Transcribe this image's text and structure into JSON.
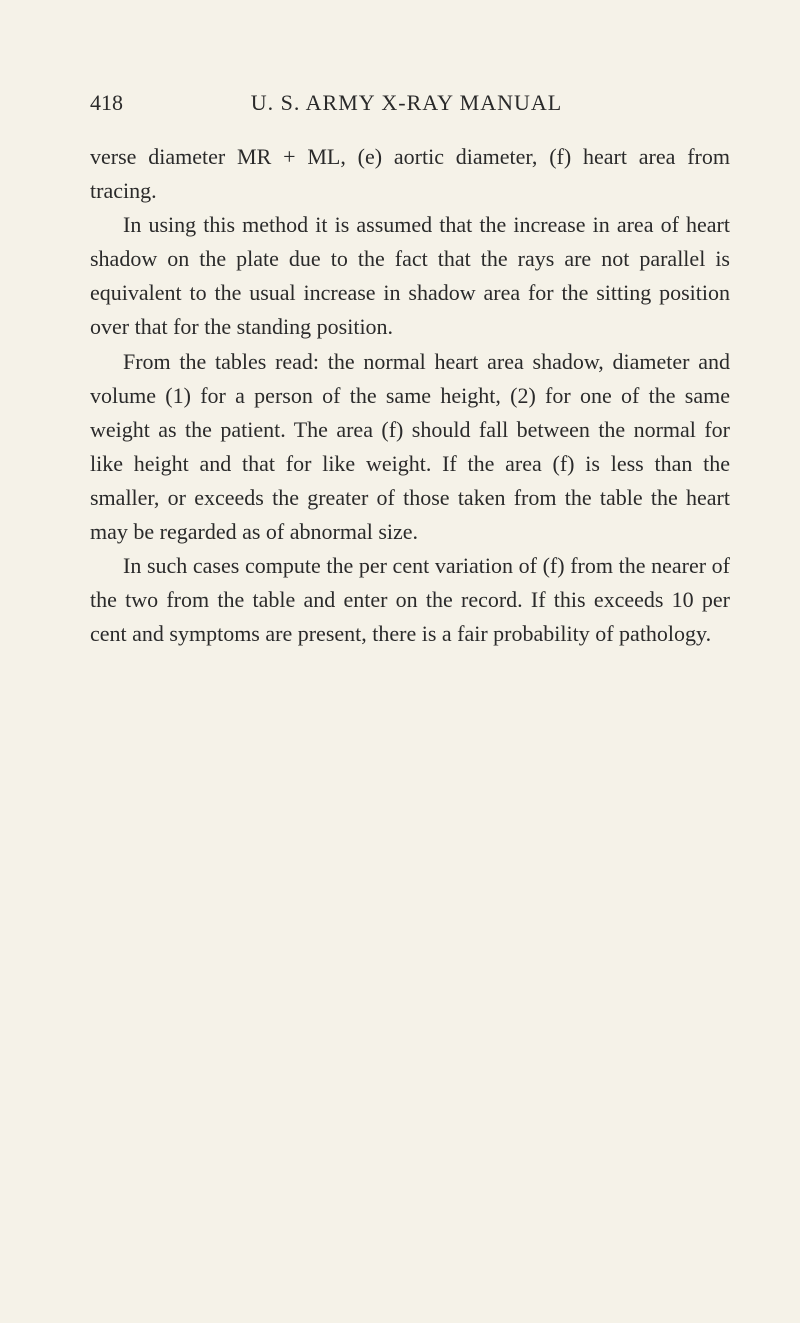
{
  "page_number": "418",
  "running_title": "U. S. ARMY X-RAY MANUAL",
  "paragraphs": [
    "verse diameter MR + ML, (e) aortic diameter, (f) heart area from tracing.",
    "In using this method it is assumed that the increase in area of heart shadow on the plate due to the fact that the rays are not parallel is equivalent to the usual increase in shadow area for the sitting position over that for the standing position.",
    "From the tables read: the normal heart area shadow, diameter and volume (1) for a person of the same height, (2) for one of the same weight as the patient. The area (f) should fall between the normal for like height and that for like weight. If the area (f) is less than the smaller, or exceeds the greater of those taken from the table the heart may be regarded as of abnormal size.",
    "In such cases compute the per cent variation of (f) from the nearer of the two from the table and enter on the record. If this exceeds 10 per cent and symptoms are present, there is a fair probability of pathology."
  ],
  "colors": {
    "background": "#f5f2e8",
    "text": "#2a2a2a"
  },
  "typography": {
    "body_fontsize": 22,
    "header_fontsize": 22,
    "line_height": 1.55,
    "font_family": "Times New Roman"
  }
}
